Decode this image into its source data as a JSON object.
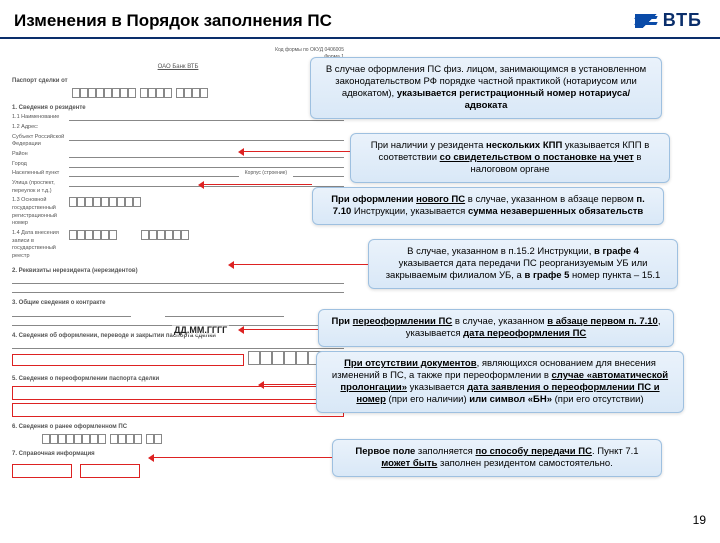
{
  "header": {
    "title": "Изменения в Порядок заполнения ПС",
    "logo_text": "ВТБ"
  },
  "form": {
    "org": "ОАО Банк ВТБ",
    "sec0": "Паспорт сделки от",
    "sec1": "1. Сведения о резиденте",
    "r1": "1.1 Наименование",
    "r2": "1.2 Адрес:",
    "addr_labels": [
      "Субъект Российской Федерации",
      "Район",
      "Город",
      "Населенный пункт",
      "Улица (проспект, переулок и т.д.)"
    ],
    "r3": "1.3 Основной государственный регистрационный номер",
    "r4": "1.4 Дата внесения записи в государственный реестр",
    "sec2": "2. Реквизиты нерезидента (нерезидентов)",
    "sec3": "3. Общие сведения о контракте",
    "sec4": "4. Сведения об оформлении, переводе и закрытии паспорта сделки",
    "sec5": "5. Сведения о переоформлении паспорта сделки",
    "sec6": "6. Сведения о ранее оформленном ПС",
    "sec7": "7. Справочная информация",
    "date_placeholder": "ДД.ММ.ГГГГ"
  },
  "callouts": {
    "c1": "В случае оформления ПС физ. лицом, занимающимся в установленном законодательством РФ порядке частной практикой (нотариусом или адвокатом), <b>указывается регистрационный номер нотариуса/адвоката</b>",
    "c2": "При наличии у резидента <b>нескольких КПП</b> указывается КПП в соответствии <b><u>со свидетельством о постановке на учет</u></b> в налоговом органе",
    "c3": "<b>При оформлении <u>нового ПС</u></b> в случае, указанном в абзаце первом <b>п. 7.10</b> Инструкции, указывается <b>сумма незавершенных обязательств</b>",
    "c4": "В случае, указанном в п.15.2 Инструкции, <b>в графе 4</b> указывается дата передачи ПС реорганизуемым УБ или закрываемым филиалом УБ, а <b>в графе 5</b> номер пункта – 15.1",
    "c5": "<b>При <u>переоформлении ПС</u></b> в случае, указанном <b><u>в абзаце первом п. 7.10</u></b>, указывается <b><u>дата переоформления ПС</u></b>",
    "c6": "<b><u>При отсутствии документов</u></b>, являющихся основанием для внесения изменений в ПС, а также при переоформлении в <b><u>случае «автоматической пролонгации»</u></b> указывается <b><u>дата заявления о переоформлении ПС и номер</u></b> (при его наличии) <b>или символ «БН»</b> (при его отсутствии)",
    "c7": "<b>Первое поле</b> заполняется <b><u>по способу передачи ПС</u></b>. Пункт 7.1 <b><u>может быть</u></b> заполнен резидентом самостоятельно."
  },
  "pagenum": "19",
  "colors": {
    "accent": "#0a2e6b",
    "callout_border": "#9ec0e0",
    "red": "#d22"
  }
}
